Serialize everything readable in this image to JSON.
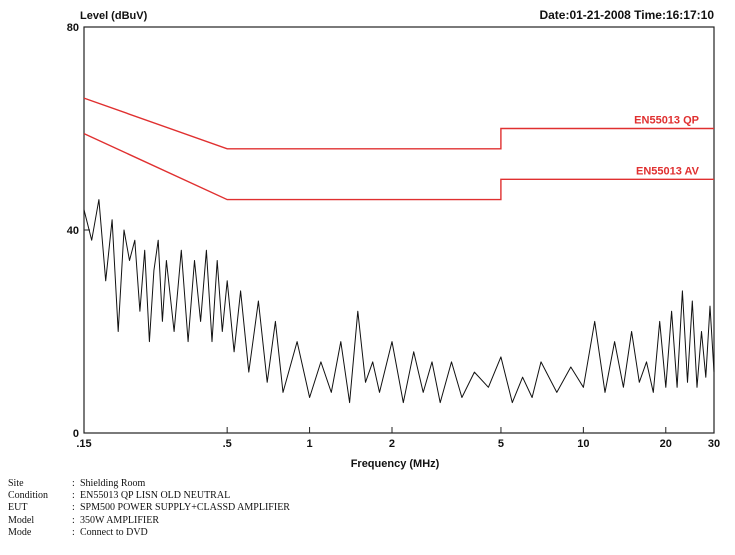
{
  "header": {
    "ylabel": "Level (dBuV)",
    "date_text": "Date:01-21-2008 Time:16:17:10"
  },
  "chart_data": {
    "type": "line",
    "xlabel": "Frequency (MHz)",
    "ylabel": "Level (dBuV)",
    "xscale": "log",
    "xlim": [
      0.15,
      30
    ],
    "ylim": [
      0,
      80
    ],
    "x_ticks": [
      0.15,
      0.5,
      1,
      2,
      5,
      10,
      20,
      30
    ],
    "x_tick_labels": [
      ".15",
      ".5",
      "1",
      "2",
      "5",
      "10",
      "20",
      "30"
    ],
    "y_ticks": [
      0,
      40,
      80
    ],
    "y_tick_labels": [
      "0",
      "40",
      "80"
    ],
    "grid": false,
    "limit_lines": [
      {
        "name": "EN55013 QP",
        "color": "#e03030",
        "points": [
          [
            0.15,
            66
          ],
          [
            0.5,
            56
          ],
          [
            5,
            56
          ],
          [
            5,
            60
          ],
          [
            30,
            60
          ]
        ]
      },
      {
        "name": "EN55013 AV",
        "color": "#e03030",
        "points": [
          [
            0.15,
            59
          ],
          [
            0.5,
            46
          ],
          [
            5,
            46
          ],
          [
            5,
            50
          ],
          [
            30,
            50
          ]
        ]
      }
    ],
    "series": [
      {
        "color": "#111111",
        "x": [
          0.15,
          0.16,
          0.17,
          0.18,
          0.19,
          0.2,
          0.21,
          0.22,
          0.23,
          0.24,
          0.25,
          0.26,
          0.27,
          0.28,
          0.29,
          0.3,
          0.32,
          0.34,
          0.36,
          0.38,
          0.4,
          0.42,
          0.44,
          0.46,
          0.48,
          0.5,
          0.53,
          0.56,
          0.6,
          0.65,
          0.7,
          0.75,
          0.8,
          0.9,
          1.0,
          1.1,
          1.2,
          1.3,
          1.4,
          1.5,
          1.6,
          1.7,
          1.8,
          2.0,
          2.2,
          2.4,
          2.6,
          2.8,
          3.0,
          3.3,
          3.6,
          4.0,
          4.5,
          5.0,
          5.5,
          6.0,
          6.5,
          7.0,
          8.0,
          9.0,
          10,
          11,
          12,
          13,
          14,
          15,
          16,
          17,
          18,
          19,
          20,
          21,
          22,
          23,
          24,
          25,
          26,
          27,
          28,
          29,
          30
        ],
        "y": [
          44,
          38,
          46,
          30,
          42,
          20,
          40,
          34,
          38,
          24,
          36,
          18,
          32,
          38,
          22,
          34,
          20,
          36,
          18,
          34,
          22,
          36,
          18,
          34,
          20,
          30,
          16,
          28,
          12,
          26,
          10,
          22,
          8,
          18,
          7,
          14,
          8,
          18,
          6,
          24,
          10,
          14,
          8,
          18,
          6,
          16,
          8,
          14,
          6,
          14,
          7,
          12,
          9,
          15,
          6,
          11,
          7,
          14,
          8,
          13,
          9,
          22,
          8,
          18,
          9,
          20,
          10,
          14,
          8,
          22,
          9,
          24,
          9,
          28,
          10,
          26,
          9,
          20,
          11,
          25,
          12
        ]
      }
    ]
  },
  "meta": [
    {
      "key": "Site",
      "value": "Shielding Room"
    },
    {
      "key": "Condition",
      "value": "EN55013 QP LISN OLD NEUTRAL"
    },
    {
      "key": "EUT",
      "value": "SPM500 POWER SUPPLY+CLASSD AMPLIFIER"
    },
    {
      "key": "Model",
      "value": "350W AMPLIFIER"
    },
    {
      "key": "Mode",
      "value": "Connect to DVD"
    }
  ]
}
